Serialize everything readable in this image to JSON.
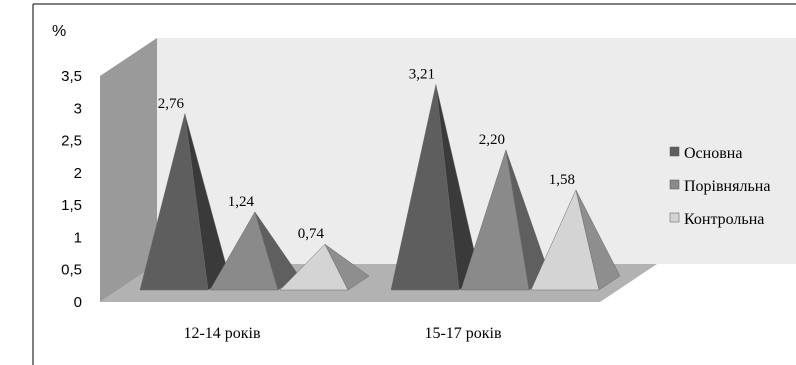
{
  "chart_data": {
    "type": "bar",
    "bar_shape": "pyramid-3d",
    "unit_label": "%",
    "categories": [
      "12-14 років",
      "15-17 років"
    ],
    "series": [
      {
        "name": "Основна",
        "values": [
          2.76,
          3.21
        ],
        "labels": [
          "2,76",
          "3,21"
        ],
        "color_front": "#5e5e5e",
        "color_side": "#3a3a3a"
      },
      {
        "name": "Порівняльна",
        "values": [
          1.24,
          2.2
        ],
        "labels": [
          "1,24",
          "2,20"
        ],
        "color_front": "#8a8a8a",
        "color_side": "#5f5f5f"
      },
      {
        "name": "Контрольна",
        "values": [
          0.74,
          1.58
        ],
        "labels": [
          "0,74",
          "1,58"
        ],
        "color_front": "#d4d4d4",
        "color_side": "#8e8e8e"
      }
    ],
    "y_ticks": [
      "0",
      "0,5",
      "1",
      "1,5",
      "2",
      "2,5",
      "3",
      "3,5"
    ],
    "ylim": [
      0,
      3.5
    ],
    "legend_position": "right",
    "wall_colors": {
      "back": "#ececec",
      "side": "#9a9a9a",
      "floor": "#b2b2b2"
    }
  }
}
